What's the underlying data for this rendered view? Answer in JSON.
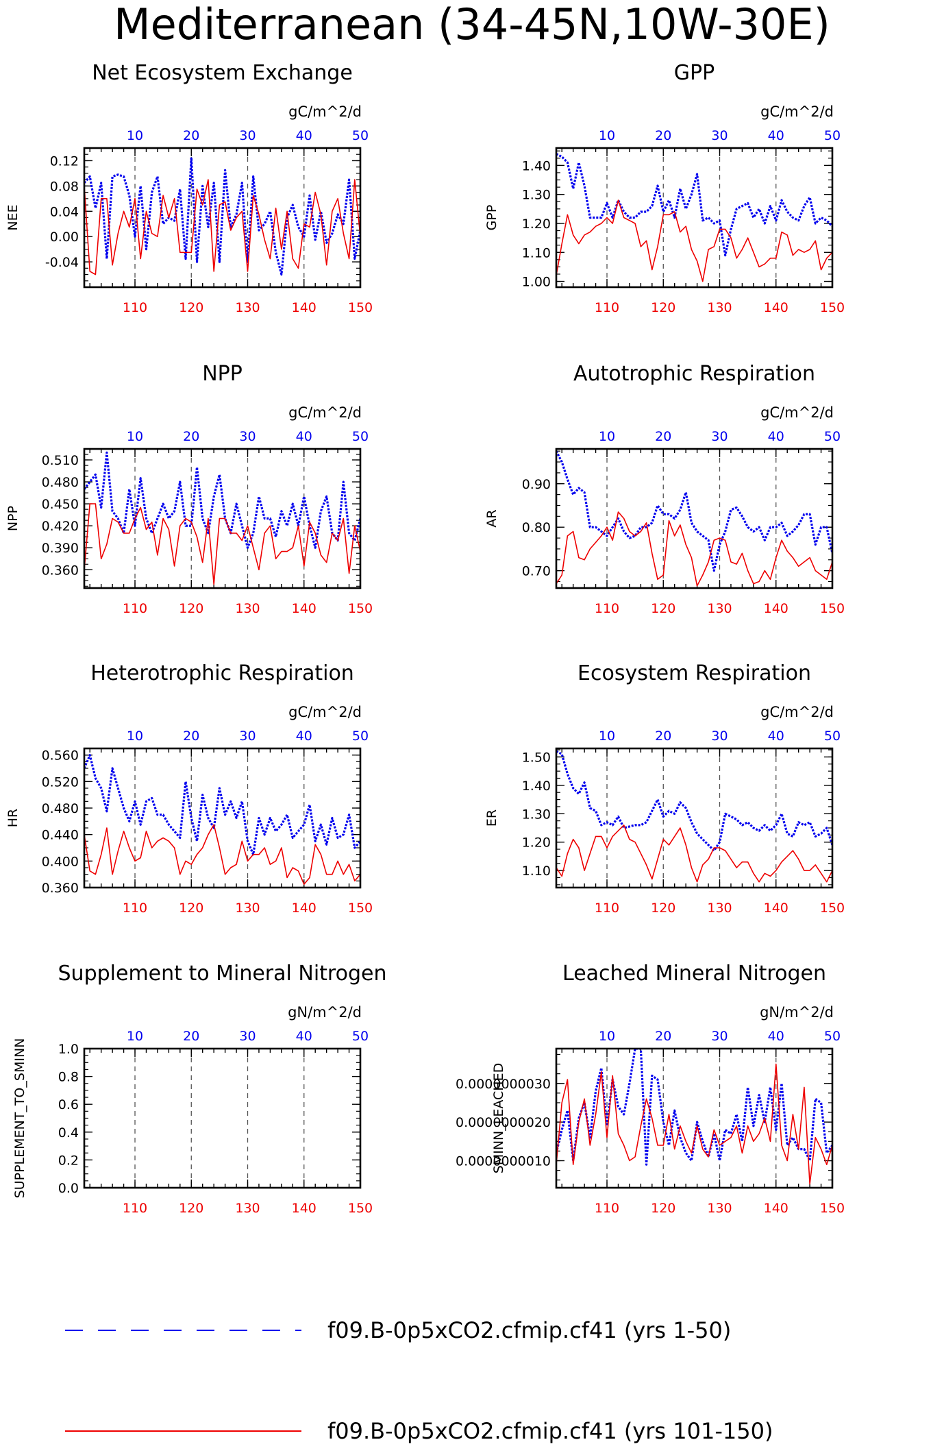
{
  "title": "Mediterranean (34-45N,10W-30E)",
  "legend": [
    {
      "label": "f09.B-0p5xCO2.cfmip.cf41 (yrs 1-50)",
      "color": "#0000ee",
      "style": "dashed"
    },
    {
      "label": "f09.B-0p5xCO2.cfmip.cf41 (yrs 101-150)",
      "color": "#ee0000",
      "style": "solid"
    }
  ],
  "chart_data": [
    {
      "type": "line",
      "title": "Net Ecosystem Exchange",
      "ylabel": "NEE",
      "unit": "gC/m^2/d",
      "top_ticks": [
        "10",
        "20",
        "30",
        "40",
        "50"
      ],
      "bottom_ticks": [
        "110",
        "120",
        "130",
        "140",
        "150"
      ],
      "ylim": [
        -0.08,
        0.14
      ],
      "yticks": [
        -0.04,
        0.0,
        0.04,
        0.08,
        0.12
      ],
      "ytick_labels": [
        "-0.04",
        "0.00",
        "0.04",
        "0.08",
        "0.12"
      ],
      "series": [
        {
          "values": [
            0.085,
            0.095,
            0.045,
            0.085,
            -0.035,
            0.095,
            0.098,
            0.095,
            0.065,
            0.0,
            0.08,
            -0.02,
            0.07,
            0.095,
            0.02,
            0.03,
            0.025,
            0.075,
            -0.035,
            0.125,
            -0.04,
            0.08,
            0.015,
            0.085,
            -0.04,
            0.105,
            0.015,
            0.035,
            0.085,
            -0.04,
            0.095,
            0.01,
            0.02,
            0.04,
            -0.025,
            -0.06,
            0.03,
            0.05,
            0.015,
            0.0,
            0.065,
            -0.005,
            0.04,
            -0.01,
            0.005,
            0.035,
            0.02,
            0.09,
            -0.035,
            0.01
          ]
        },
        {
          "values": [
            0.08,
            -0.055,
            -0.06,
            0.06,
            0.06,
            -0.045,
            0.005,
            0.04,
            0.015,
            0.06,
            -0.035,
            0.04,
            0.005,
            0.0,
            0.065,
            0.03,
            0.06,
            -0.025,
            -0.025,
            -0.025,
            0.075,
            0.05,
            0.09,
            -0.055,
            0.05,
            0.055,
            0.01,
            0.03,
            0.04,
            -0.055,
            0.065,
            0.035,
            -0.005,
            -0.035,
            0.045,
            -0.02,
            0.04,
            -0.035,
            -0.05,
            0.02,
            0.015,
            0.07,
            0.035,
            -0.045,
            0.04,
            0.06,
            0.005,
            -0.035,
            0.09,
            0.0
          ]
        }
      ]
    },
    {
      "type": "line",
      "title": "GPP",
      "ylabel": "GPP",
      "unit": "gC/m^2/d",
      "top_ticks": [
        "10",
        "20",
        "30",
        "40",
        "50"
      ],
      "bottom_ticks": [
        "110",
        "120",
        "130",
        "140",
        "150"
      ],
      "ylim": [
        0.98,
        1.46
      ],
      "yticks": [
        1.0,
        1.1,
        1.2,
        1.3,
        1.4
      ],
      "ytick_labels": [
        "1.00",
        "1.10",
        "1.20",
        "1.30",
        "1.40"
      ],
      "series": [
        {
          "values": [
            1.44,
            1.43,
            1.41,
            1.32,
            1.41,
            1.33,
            1.22,
            1.22,
            1.22,
            1.27,
            1.22,
            1.28,
            1.24,
            1.22,
            1.22,
            1.24,
            1.24,
            1.26,
            1.33,
            1.24,
            1.28,
            1.22,
            1.32,
            1.25,
            1.3,
            1.37,
            1.21,
            1.22,
            1.2,
            1.21,
            1.09,
            1.18,
            1.25,
            1.26,
            1.27,
            1.22,
            1.25,
            1.2,
            1.26,
            1.21,
            1.28,
            1.24,
            1.22,
            1.21,
            1.26,
            1.29,
            1.2,
            1.22,
            1.21,
            1.19
          ]
        },
        {
          "values": [
            1.02,
            1.13,
            1.23,
            1.16,
            1.13,
            1.16,
            1.17,
            1.19,
            1.2,
            1.22,
            1.2,
            1.28,
            1.22,
            1.21,
            1.2,
            1.12,
            1.14,
            1.04,
            1.12,
            1.23,
            1.23,
            1.24,
            1.17,
            1.19,
            1.11,
            1.07,
            1.0,
            1.11,
            1.12,
            1.18,
            1.18,
            1.15,
            1.08,
            1.11,
            1.15,
            1.1,
            1.05,
            1.06,
            1.08,
            1.08,
            1.17,
            1.16,
            1.09,
            1.11,
            1.1,
            1.11,
            1.14,
            1.04,
            1.08,
            1.1
          ]
        }
      ]
    },
    {
      "type": "line",
      "title": "NPP",
      "ylabel": "NPP",
      "unit": "gC/m^2/d",
      "top_ticks": [
        "10",
        "20",
        "30",
        "40",
        "50"
      ],
      "bottom_ticks": [
        "110",
        "120",
        "130",
        "140",
        "150"
      ],
      "ylim": [
        0.335,
        0.525
      ],
      "yticks": [
        0.36,
        0.39,
        0.42,
        0.45,
        0.48,
        0.51
      ],
      "ytick_labels": [
        "0.360",
        "0.390",
        "0.420",
        "0.450",
        "0.480",
        "0.510"
      ],
      "series": [
        {
          "values": [
            0.47,
            0.48,
            0.49,
            0.445,
            0.52,
            0.44,
            0.43,
            0.41,
            0.47,
            0.42,
            0.485,
            0.43,
            0.41,
            0.43,
            0.45,
            0.43,
            0.44,
            0.48,
            0.42,
            0.42,
            0.5,
            0.43,
            0.41,
            0.46,
            0.49,
            0.43,
            0.41,
            0.45,
            0.42,
            0.39,
            0.41,
            0.46,
            0.43,
            0.43,
            0.405,
            0.44,
            0.42,
            0.45,
            0.42,
            0.46,
            0.42,
            0.39,
            0.44,
            0.46,
            0.41,
            0.4,
            0.48,
            0.41,
            0.4,
            0.43
          ]
        },
        {
          "values": [
            0.36,
            0.45,
            0.45,
            0.375,
            0.395,
            0.43,
            0.425,
            0.41,
            0.41,
            0.43,
            0.445,
            0.415,
            0.425,
            0.38,
            0.43,
            0.415,
            0.365,
            0.42,
            0.43,
            0.425,
            0.405,
            0.37,
            0.43,
            0.34,
            0.43,
            0.43,
            0.41,
            0.41,
            0.4,
            0.42,
            0.39,
            0.36,
            0.41,
            0.42,
            0.375,
            0.385,
            0.385,
            0.39,
            0.42,
            0.365,
            0.425,
            0.41,
            0.38,
            0.37,
            0.41,
            0.4,
            0.43,
            0.355,
            0.42,
            0.385
          ]
        }
      ]
    },
    {
      "type": "line",
      "title": "Autotrophic Respiration",
      "ylabel": "AR",
      "unit": "gC/m^2/d",
      "top_ticks": [
        "10",
        "20",
        "30",
        "40",
        "50"
      ],
      "bottom_ticks": [
        "110",
        "120",
        "130",
        "140",
        "150"
      ],
      "ylim": [
        0.66,
        0.98
      ],
      "yticks": [
        0.7,
        0.8,
        0.9
      ],
      "ytick_labels": [
        "0.70",
        "0.80",
        "0.90"
      ],
      "series": [
        {
          "values": [
            0.975,
            0.95,
            0.91,
            0.875,
            0.89,
            0.88,
            0.8,
            0.8,
            0.79,
            0.78,
            0.8,
            0.82,
            0.79,
            0.775,
            0.78,
            0.8,
            0.8,
            0.81,
            0.85,
            0.83,
            0.83,
            0.82,
            0.84,
            0.88,
            0.81,
            0.79,
            0.78,
            0.77,
            0.7,
            0.76,
            0.79,
            0.84,
            0.845,
            0.825,
            0.8,
            0.79,
            0.8,
            0.77,
            0.8,
            0.8,
            0.81,
            0.78,
            0.79,
            0.805,
            0.83,
            0.83,
            0.76,
            0.8,
            0.8,
            0.74
          ]
        },
        {
          "values": [
            0.67,
            0.69,
            0.78,
            0.79,
            0.73,
            0.725,
            0.75,
            0.765,
            0.78,
            0.8,
            0.77,
            0.835,
            0.82,
            0.79,
            0.78,
            0.79,
            0.81,
            0.74,
            0.68,
            0.69,
            0.815,
            0.78,
            0.805,
            0.76,
            0.73,
            0.665,
            0.69,
            0.72,
            0.77,
            0.775,
            0.77,
            0.72,
            0.715,
            0.74,
            0.7,
            0.67,
            0.675,
            0.7,
            0.68,
            0.73,
            0.77,
            0.745,
            0.73,
            0.71,
            0.72,
            0.73,
            0.7,
            0.69,
            0.68,
            0.72
          ]
        }
      ]
    },
    {
      "type": "line",
      "title": "Heterotrophic Respiration",
      "ylabel": "HR",
      "unit": "gC/m^2/d",
      "top_ticks": [
        "10",
        "20",
        "30",
        "40",
        "50"
      ],
      "bottom_ticks": [
        "110",
        "120",
        "130",
        "140",
        "150"
      ],
      "ylim": [
        0.36,
        0.57
      ],
      "yticks": [
        0.36,
        0.4,
        0.44,
        0.48,
        0.52,
        0.56
      ],
      "ytick_labels": [
        "0.360",
        "0.400",
        "0.440",
        "0.480",
        "0.520",
        "0.560"
      ],
      "series": [
        {
          "values": [
            0.54,
            0.56,
            0.525,
            0.51,
            0.475,
            0.54,
            0.51,
            0.48,
            0.46,
            0.49,
            0.455,
            0.49,
            0.495,
            0.47,
            0.47,
            0.455,
            0.445,
            0.435,
            0.52,
            0.465,
            0.43,
            0.5,
            0.465,
            0.45,
            0.51,
            0.47,
            0.49,
            0.465,
            0.49,
            0.43,
            0.41,
            0.465,
            0.44,
            0.465,
            0.445,
            0.455,
            0.47,
            0.435,
            0.445,
            0.455,
            0.485,
            0.43,
            0.455,
            0.425,
            0.465,
            0.435,
            0.44,
            0.47,
            0.42,
            0.43
          ]
        },
        {
          "values": [
            0.44,
            0.385,
            0.38,
            0.41,
            0.45,
            0.38,
            0.415,
            0.445,
            0.42,
            0.4,
            0.405,
            0.445,
            0.42,
            0.43,
            0.435,
            0.43,
            0.42,
            0.38,
            0.4,
            0.395,
            0.41,
            0.42,
            0.44,
            0.455,
            0.42,
            0.38,
            0.39,
            0.395,
            0.43,
            0.4,
            0.41,
            0.41,
            0.42,
            0.395,
            0.4,
            0.42,
            0.375,
            0.39,
            0.385,
            0.365,
            0.375,
            0.425,
            0.41,
            0.38,
            0.38,
            0.4,
            0.38,
            0.395,
            0.37,
            0.38
          ]
        }
      ]
    },
    {
      "type": "line",
      "title": "Ecosystem Respiration",
      "ylabel": "ER",
      "unit": "gC/m^2/d",
      "top_ticks": [
        "10",
        "20",
        "30",
        "40",
        "50"
      ],
      "bottom_ticks": [
        "110",
        "120",
        "130",
        "140",
        "150"
      ],
      "ylim": [
        1.04,
        1.53
      ],
      "yticks": [
        1.1,
        1.2,
        1.3,
        1.4,
        1.5
      ],
      "ytick_labels": [
        "1.10",
        "1.20",
        "1.30",
        "1.40",
        "1.50"
      ],
      "series": [
        {
          "values": [
            1.52,
            1.51,
            1.44,
            1.39,
            1.37,
            1.41,
            1.32,
            1.31,
            1.26,
            1.27,
            1.26,
            1.29,
            1.25,
            1.255,
            1.26,
            1.26,
            1.27,
            1.31,
            1.35,
            1.29,
            1.31,
            1.3,
            1.34,
            1.32,
            1.27,
            1.23,
            1.21,
            1.19,
            1.17,
            1.2,
            1.3,
            1.29,
            1.28,
            1.26,
            1.27,
            1.25,
            1.24,
            1.26,
            1.24,
            1.26,
            1.3,
            1.23,
            1.22,
            1.27,
            1.26,
            1.27,
            1.22,
            1.23,
            1.25,
            1.19
          ]
        },
        {
          "values": [
            1.11,
            1.08,
            1.16,
            1.21,
            1.18,
            1.1,
            1.16,
            1.22,
            1.22,
            1.18,
            1.22,
            1.24,
            1.26,
            1.21,
            1.2,
            1.16,
            1.12,
            1.07,
            1.14,
            1.21,
            1.19,
            1.22,
            1.25,
            1.19,
            1.11,
            1.06,
            1.12,
            1.14,
            1.18,
            1.18,
            1.17,
            1.14,
            1.11,
            1.13,
            1.13,
            1.09,
            1.06,
            1.09,
            1.08,
            1.1,
            1.13,
            1.15,
            1.17,
            1.14,
            1.1,
            1.1,
            1.12,
            1.09,
            1.06,
            1.1
          ]
        }
      ]
    },
    {
      "type": "line",
      "title": "Supplement to Mineral Nitrogen",
      "ylabel": "SUPPLEMENT_TO_SMINN",
      "unit": "gN/m^2/d",
      "top_ticks": [
        "10",
        "20",
        "30",
        "40",
        "50"
      ],
      "bottom_ticks": [
        "110",
        "120",
        "130",
        "140",
        "150"
      ],
      "ylim": [
        0.0,
        1.0
      ],
      "yticks": [
        0.0,
        0.2,
        0.4,
        0.6,
        0.8,
        1.0
      ],
      "ytick_labels": [
        "0.0",
        "0.2",
        "0.4",
        "0.6",
        "0.8",
        "1.0"
      ],
      "series": [
        {
          "values": []
        },
        {
          "values": []
        }
      ]
    },
    {
      "type": "line",
      "title": "Leached Mineral Nitrogen",
      "ylabel": "SMINN_LEACHED",
      "unit": "gN/m^2/d",
      "top_ticks": [
        "10",
        "20",
        "30",
        "40",
        "50"
      ],
      "bottom_ticks": [
        "110",
        "120",
        "130",
        "140",
        "150"
      ],
      "ylim": [
        3e-10,
        3.9e-09
      ],
      "yticks": [
        1e-09,
        2e-09,
        3e-09
      ],
      "ytick_labels": [
        "0.0000000010",
        "0.0000000020",
        "0.0000000030"
      ],
      "series": [
        {
          "values": [
            1.2e-09,
            1.8e-09,
            2.3e-09,
            1e-09,
            2.1e-09,
            2.5e-09,
            1.6e-09,
            2.8e-09,
            3.4e-09,
            1.9e-09,
            3.1e-09,
            2.4e-09,
            2.2e-09,
            3e-09,
            3.9e-09,
            3.9e-09,
            9e-10,
            3.2e-09,
            3.1e-09,
            2e-09,
            1.4e-09,
            2.3e-09,
            1.6e-09,
            1.2e-09,
            1e-09,
            2e-09,
            1.5e-09,
            1.1e-09,
            1.7e-09,
            1e-09,
            1.8e-09,
            1.7e-09,
            2.2e-09,
            1.5e-09,
            2.9e-09,
            1.9e-09,
            2.7e-09,
            2e-09,
            2.9e-09,
            1.8e-09,
            3e-09,
            1.4e-09,
            1.6e-09,
            1.3e-09,
            1.3e-09,
            1e-09,
            2.6e-09,
            2.5e-09,
            1.2e-09,
            1.4e-09
          ]
        },
        {
          "values": [
            9e-10,
            2.5e-09,
            3.1e-09,
            9e-10,
            2e-09,
            2.6e-09,
            1.4e-09,
            2.2e-09,
            3.3e-09,
            1.6e-09,
            3.2e-09,
            1.7e-09,
            1.4e-09,
            1e-09,
            1.1e-09,
            1.9e-09,
            2.6e-09,
            2.1e-09,
            1.4e-09,
            1.4e-09,
            2.2e-09,
            1.3e-09,
            1.9e-09,
            1.5e-09,
            1.2e-09,
            1.9e-09,
            1.3e-09,
            1.1e-09,
            1.8e-09,
            1.4e-09,
            1.5e-09,
            1.6e-09,
            1.9e-09,
            1.2e-09,
            1.9e-09,
            1.5e-09,
            1.7e-09,
            2.1e-09,
            1.5e-09,
            3.5e-09,
            1.4e-09,
            1e-09,
            2.2e-09,
            1.3e-09,
            2.9e-09,
            4e-10,
            1.6e-09,
            1.3e-09,
            9e-10,
            1.4e-09
          ]
        }
      ]
    }
  ]
}
